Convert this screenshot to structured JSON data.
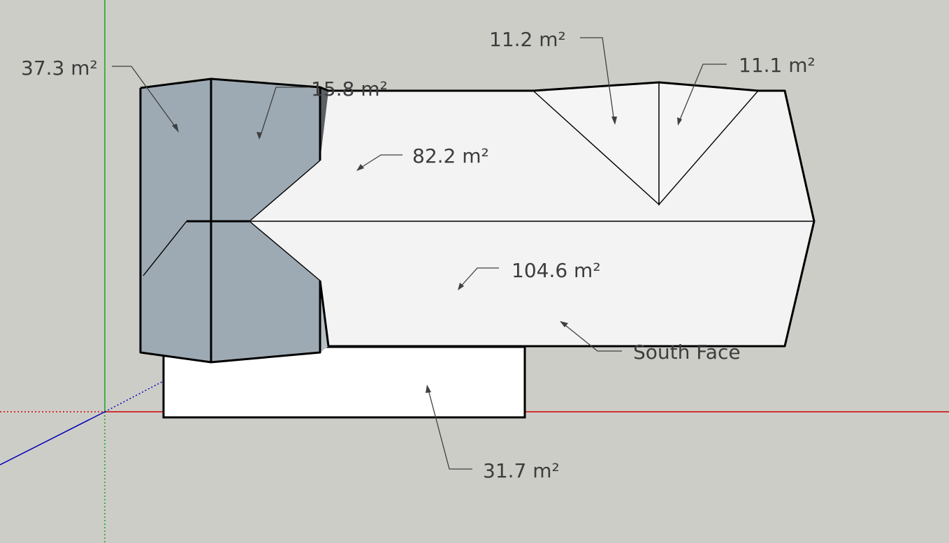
{
  "colors": {
    "background": "#cdcdc8",
    "roof_light": "#f3f3f3",
    "roof_shaded": "#9eaab3",
    "roof_dark": "#5b6066",
    "wall": "#ffffff",
    "axis_red": "#cc0000",
    "axis_green": "#1aa31a",
    "axis_blue": "#0000b8"
  },
  "dimensions": {
    "left_hip_area": "37.3 m²",
    "small_hip_area": "15.8 m²",
    "left_gable_area": "11.2 m²",
    "right_gable_area": "11.1 m²",
    "north_roof_area": "82.2 m²",
    "south_roof_area": "104.6 m²",
    "south_face_label": "South Face",
    "wall_area": "31.7 m²"
  }
}
